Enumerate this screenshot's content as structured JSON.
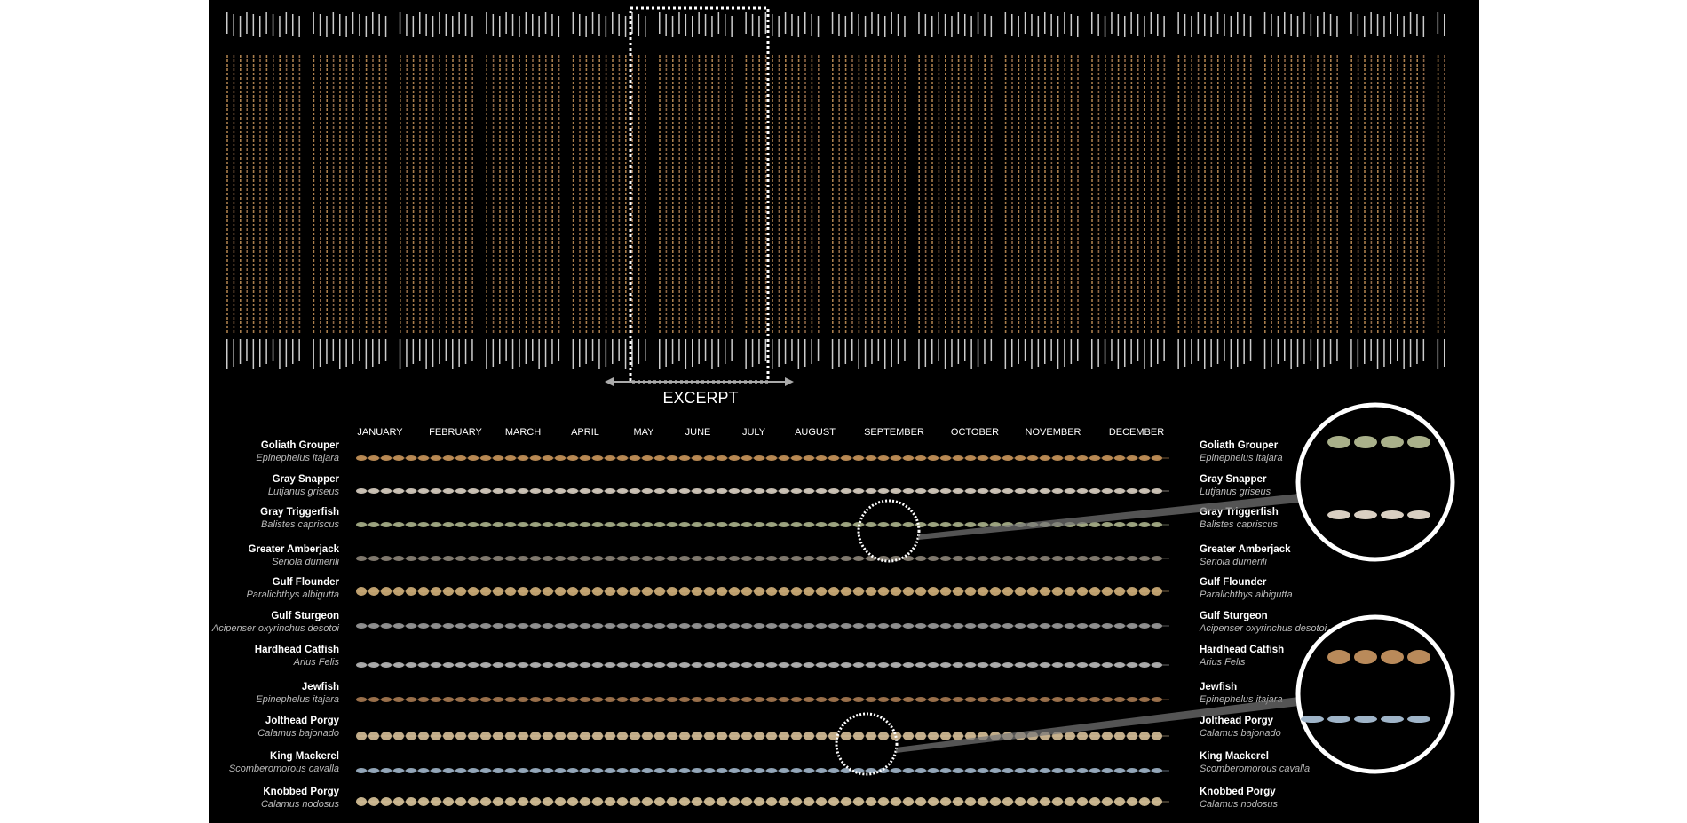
{
  "excerpt_label": "EXCERPT",
  "months": [
    "JANUARY",
    "FEBRUARY",
    "MARCH",
    "APRIL",
    "MAY",
    "JUNE",
    "JULY",
    "AUGUST",
    "SEPTEMBER",
    "OCTOBER",
    "NOVEMBER",
    "DECEMBER"
  ],
  "species": [
    {
      "common": "Goliath Grouper",
      "latin": "Epinephelus itajara",
      "color": "#c8955a"
    },
    {
      "common": "Gray Snapper",
      "latin": "Lutjanus griseus",
      "color": "#d9cfc2"
    },
    {
      "common": "Gray Triggerfish",
      "latin": "Balistes capriscus",
      "color": "#a9b08a"
    },
    {
      "common": "Greater Amberjack",
      "latin": "Seriola dumerili",
      "color": "#8c8478"
    },
    {
      "common": "Gulf Flounder",
      "latin": "Paralichthys albigutta",
      "color": "#d2b07a"
    },
    {
      "common": "Gulf Sturgeon",
      "latin": "Acipenser oxyrinchus desotoi",
      "color": "#9a9a9a"
    },
    {
      "common": "Hardhead Catfish",
      "latin": "Arius Felis",
      "color": "#b8b8b8"
    },
    {
      "common": "Jewfish",
      "latin": "Epinephelus itajara",
      "color": "#a77a52"
    },
    {
      "common": "Jolthead Porgy",
      "latin": "Calamus bajonado",
      "color": "#d6bf98"
    },
    {
      "common": "King Mackerel",
      "latin": "Scomberomorous cavalla",
      "color": "#9fb4c8"
    },
    {
      "common": "Knobbed Porgy",
      "latin": "Calamus nodosus",
      "color": "#d9c49a"
    }
  ]
}
